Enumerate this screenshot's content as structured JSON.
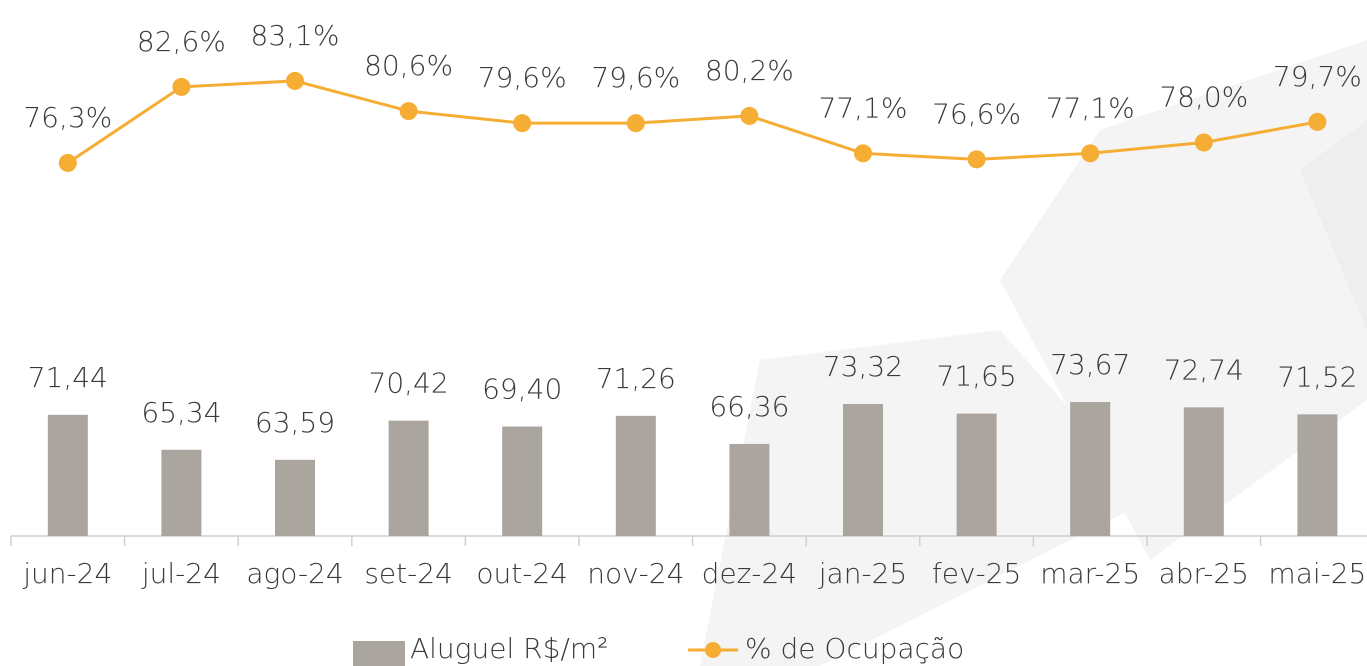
{
  "chart_data": {
    "type": "bar-line",
    "categories": [
      "jun-24",
      "jul-24",
      "ago-24",
      "set-24",
      "out-24",
      "nov-24",
      "dez-24",
      "jan-25",
      "fev-25",
      "mar-25",
      "abr-25",
      "mai-25"
    ],
    "series": [
      {
        "name": "Aluguel R$/m²",
        "type": "bar",
        "color": "#aba59f",
        "values": [
          71.44,
          65.34,
          63.59,
          70.42,
          69.4,
          71.26,
          66.36,
          73.32,
          71.65,
          73.67,
          72.74,
          71.52
        ],
        "value_labels": [
          "71,44",
          "65,34",
          "63,59",
          "70,42",
          "69,40",
          "71,26",
          "66,36",
          "73,32",
          "71,65",
          "73,67",
          "72,74",
          "71,52"
        ]
      },
      {
        "name": "% de Ocupação",
        "type": "line",
        "axis": "y2",
        "color": "#f5ad33",
        "values": [
          76.3,
          82.6,
          83.1,
          80.6,
          79.6,
          79.6,
          80.2,
          77.1,
          76.6,
          77.1,
          78.0,
          79.7
        ],
        "value_labels": [
          "76,3%",
          "82,6%",
          "83,1%",
          "80,6%",
          "79,6%",
          "79,6%",
          "80,2%",
          "77,1%",
          "76,6%",
          "77,1%",
          "78,0%",
          "79,7%"
        ]
      }
    ],
    "ylim": [
      50.3,
      143.8
    ],
    "y2lim": [
      45.4,
      89.8
    ],
    "legend": "bottom"
  }
}
